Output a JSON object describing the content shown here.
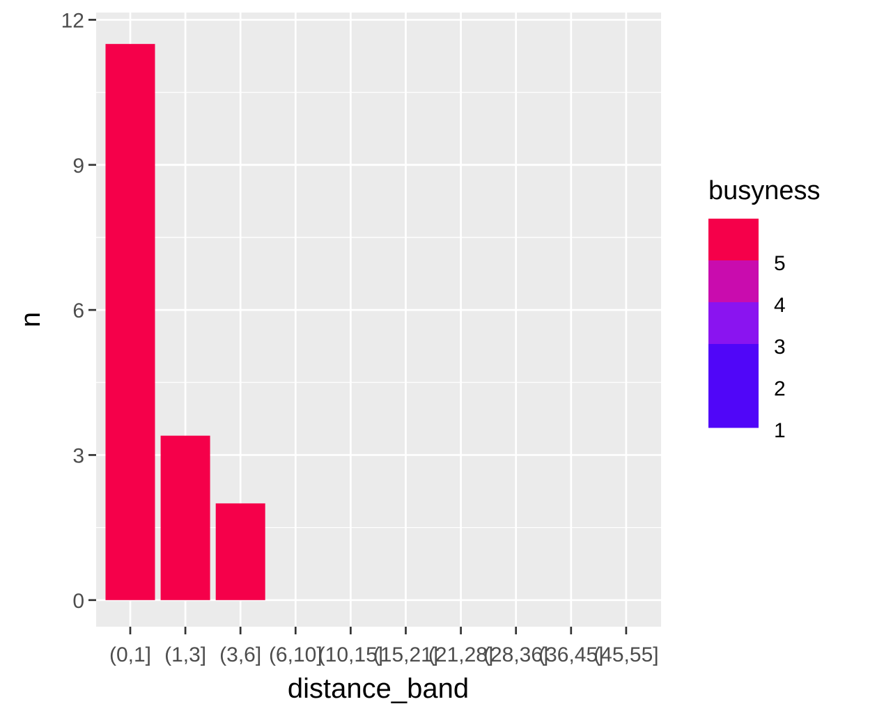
{
  "chart_data": {
    "type": "bar",
    "xlabel": "distance_band",
    "ylabel": "n",
    "categories": [
      "(0,1]",
      "(1,3]",
      "(3,6]",
      "(6,10]",
      "(10,15]",
      "(15,21]",
      "(21,28]",
      "(28,36]",
      "(36,45]",
      "(45,55]"
    ],
    "values": [
      11.5,
      3.4,
      2.0,
      0,
      0,
      0,
      0,
      0,
      0,
      0
    ],
    "bar_color": "#f5004a",
    "ylim": [
      -0.55,
      12.15
    ],
    "yticks": [
      0,
      3,
      6,
      9,
      12
    ],
    "ytick_labels": [
      "0",
      "3",
      "6",
      "9",
      "12"
    ],
    "panel_background": "#ebebeb",
    "grid": true,
    "legend": {
      "title": "busyness",
      "placement": "right",
      "labels": [
        "5",
        "4",
        "3",
        "2",
        "1"
      ],
      "colors": [
        "#f5004a",
        "#c90cae",
        "#8a14f0",
        "#5006f8",
        "#5006f8"
      ]
    }
  }
}
